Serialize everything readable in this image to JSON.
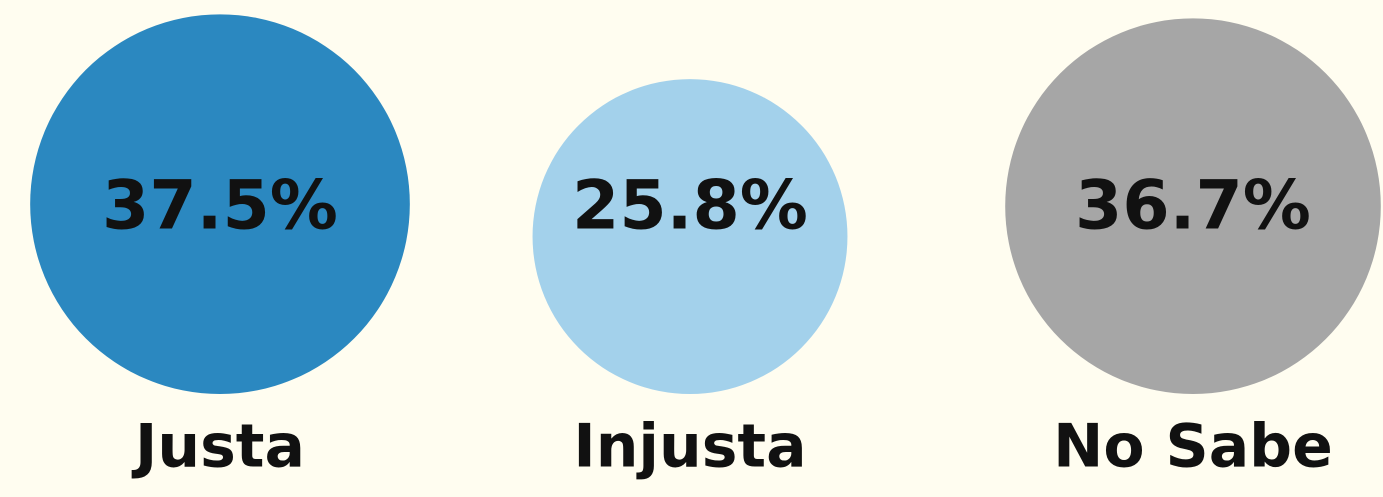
{
  "chart_data": {
    "type": "bubble",
    "categories": [
      "Justa",
      "Injusta",
      "No Sabe"
    ],
    "values": [
      37.5,
      25.8,
      36.7
    ],
    "value_labels": [
      "37.5%",
      "25.8%",
      "36.7%"
    ],
    "colors": [
      "#2b88c0",
      "#a3d1eb",
      "#a6a6a6"
    ]
  }
}
